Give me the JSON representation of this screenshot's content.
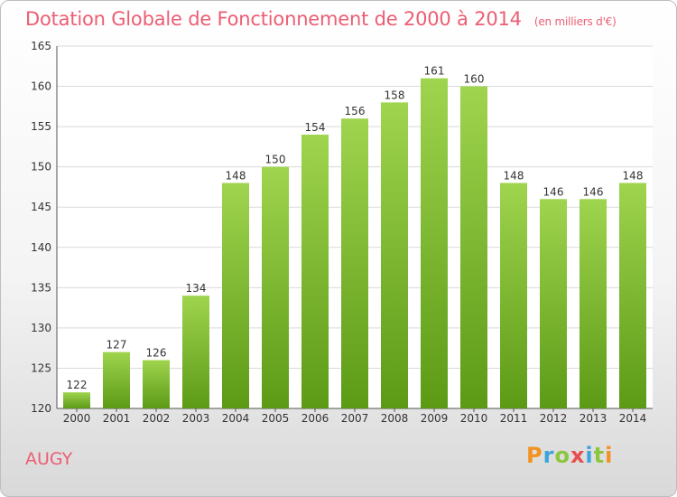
{
  "chart_data": {
    "type": "bar",
    "title": "Dotation Globale de Fonctionnement de 2000 à 2014",
    "subtitle": "(en milliers d'€)",
    "categories": [
      "2000",
      "2001",
      "2002",
      "2003",
      "2004",
      "2005",
      "2006",
      "2007",
      "2008",
      "2009",
      "2010",
      "2011",
      "2012",
      "2013",
      "2014"
    ],
    "values": [
      122,
      127,
      126,
      134,
      148,
      150,
      154,
      156,
      158,
      161,
      160,
      148,
      146,
      146,
      148
    ],
    "ylim": [
      120,
      165
    ],
    "yticks": [
      120,
      125,
      130,
      135,
      140,
      145,
      150,
      155,
      160,
      165
    ],
    "grid": true,
    "bar_color": "#7cbd2c"
  },
  "place_name": "AUGY",
  "logo": {
    "letters": [
      "P",
      "r",
      "o",
      "x",
      "i",
      "t",
      "i"
    ],
    "colors": [
      "#f29222",
      "#3ba4dc",
      "#8cc63e",
      "#e94e4e",
      "#3ba4dc",
      "#8cc63e",
      "#f29222"
    ]
  }
}
